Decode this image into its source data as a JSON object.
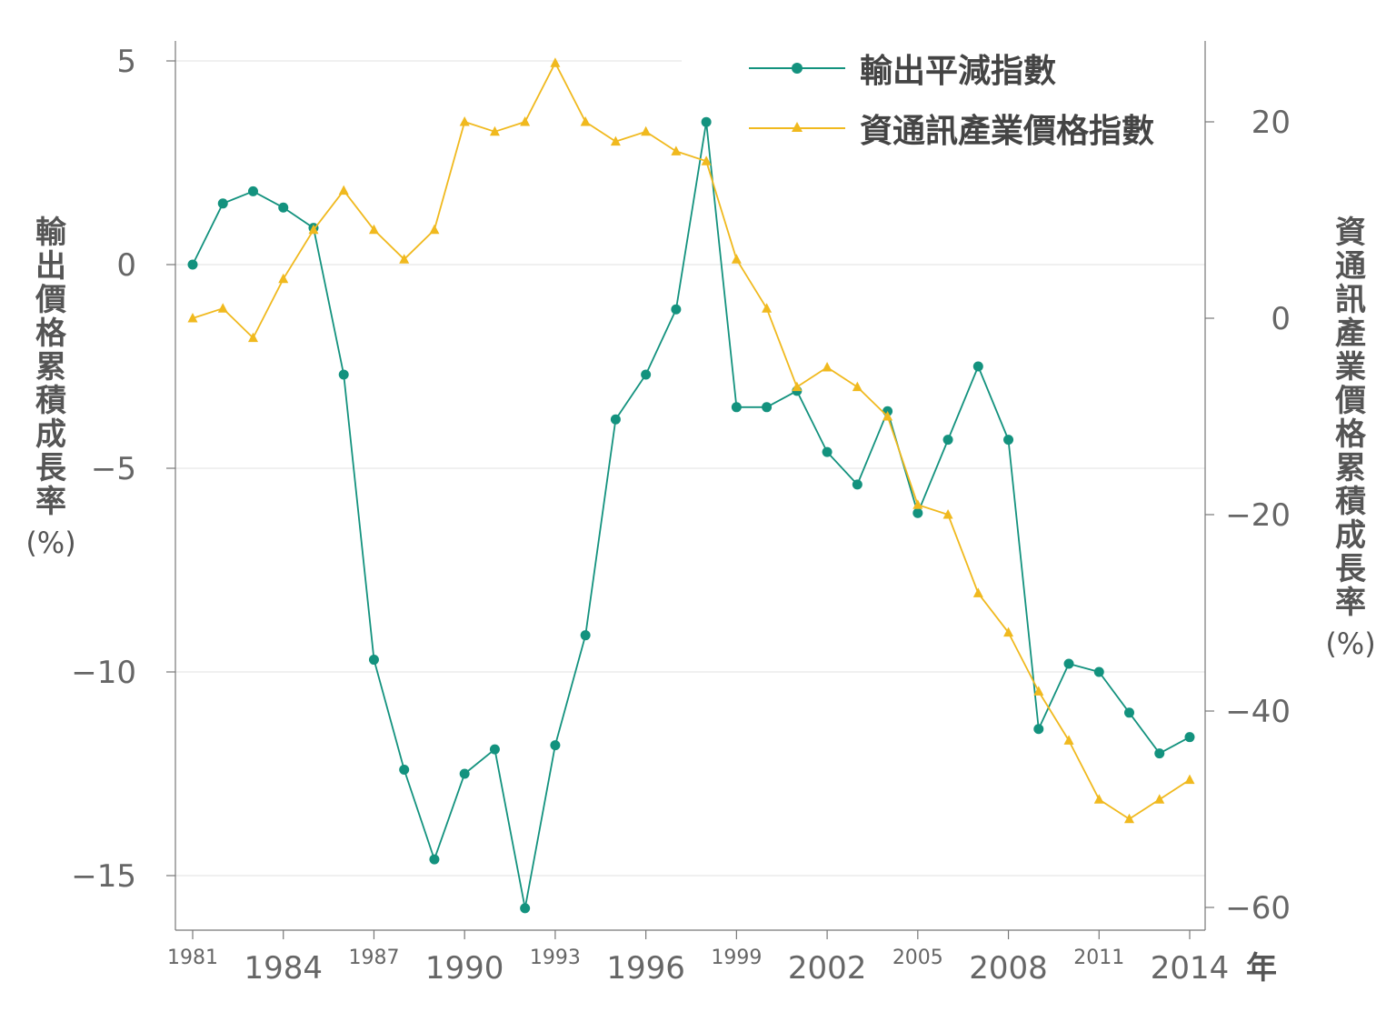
{
  "chart_data": {
    "type": "line",
    "xlabel_unit": "年",
    "ylabel_left": "輸出價格累積成長率",
    "ylabel_left_unit": "(%)",
    "ylabel_right": "資通訊產業價格累積成長率",
    "ylabel_right_unit": "(%)",
    "xlim": [
      1981,
      2014
    ],
    "ylim_left": [
      -16.5,
      5.5
    ],
    "ylim_right": [
      -62,
      29
    ],
    "left_ticks": [
      5,
      0,
      -5,
      -10,
      -15
    ],
    "right_ticks": [
      20,
      0,
      -20,
      -40,
      -60
    ],
    "x_ticks_small": [
      1981,
      1987,
      1993,
      1999,
      2005,
      2011
    ],
    "x_ticks_large": [
      1984,
      1990,
      1996,
      2002,
      2008,
      2014
    ],
    "grid": "horizontal",
    "legend_position": "top-right",
    "x": [
      1981,
      1982,
      1983,
      1984,
      1985,
      1986,
      1987,
      1988,
      1989,
      1990,
      1991,
      1992,
      1993,
      1994,
      1995,
      1996,
      1997,
      1998,
      1999,
      2000,
      2001,
      2002,
      2003,
      2004,
      2005,
      2006,
      2007,
      2008,
      2009,
      2010,
      2011,
      2012,
      2013,
      2014
    ],
    "series": [
      {
        "name": "輸出平減指數",
        "axis": "left",
        "color": "#13927e",
        "marker": "circle",
        "values": [
          0.0,
          1.5,
          1.8,
          1.4,
          0.9,
          -2.7,
          -9.7,
          -12.4,
          -14.6,
          -12.5,
          -11.9,
          -15.8,
          -11.8,
          -9.1,
          -3.8,
          -2.7,
          -1.1,
          3.5,
          -3.5,
          -3.5,
          -3.1,
          -4.6,
          -5.4,
          -3.6,
          -6.1,
          -4.3,
          -2.5,
          -4.3,
          -11.4,
          -9.8,
          -10.0,
          -11.0,
          -12.0,
          -11.6
        ]
      },
      {
        "name": "資通訊產業價格指數",
        "axis": "right",
        "color": "#f0b91e",
        "marker": "triangle",
        "values": [
          0,
          1,
          -2,
          4,
          9,
          13,
          9,
          6,
          9,
          20,
          19,
          20,
          26,
          20,
          18,
          19,
          17,
          16,
          6,
          1,
          -7,
          -5,
          -7,
          -10,
          -19,
          -20,
          -28,
          -32,
          -38,
          -43,
          -49,
          -51,
          -49,
          -47
        ]
      }
    ]
  }
}
